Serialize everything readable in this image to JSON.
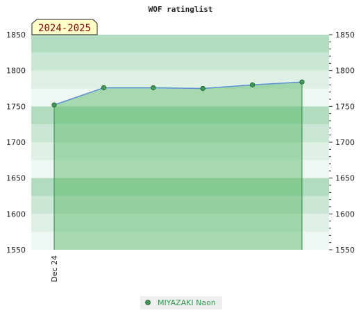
{
  "chart_data": {
    "type": "area",
    "title": "WOF ratinglist",
    "season_label": "2024-2025",
    "xlabel": "",
    "ylabel": "",
    "ylim": [
      1550,
      1850
    ],
    "yticks": [
      1550,
      1600,
      1650,
      1700,
      1750,
      1800,
      1850
    ],
    "x_tick_labels": [
      "Dec 24"
    ],
    "grid": false,
    "legend_placement": "bottom-center",
    "series": [
      {
        "name": "MIYAZAKI Naon",
        "values": [
          1752,
          1776,
          1776,
          1775,
          1780,
          1784
        ]
      }
    ],
    "colors": {
      "line": "#5b8fd6",
      "marker": "#3e9a52",
      "area_fill": "#4fb35f",
      "legend_text": "#2e9c4e",
      "band_dark": "#b2dcc0",
      "band_mid": "#cae6d4",
      "band_light": "#dff0e5",
      "band_lightest": "#eef7f1",
      "season_bg": "#ffffc8",
      "season_text": "#8b0000"
    }
  }
}
